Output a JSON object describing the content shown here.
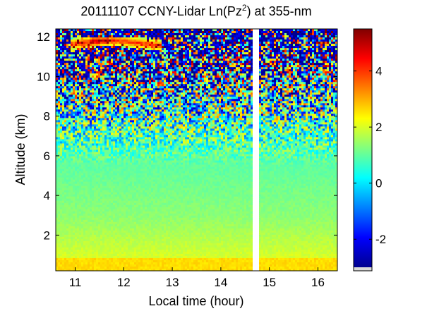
{
  "chart_data": {
    "type": "heatmap",
    "title": {
      "prefix": "20111107 CCNY-Lidar Ln(Pz",
      "superscript": "2",
      "suffix": ") at 355-nm"
    },
    "xlabel": "Local time (hour)",
    "ylabel": "Altitude (km)",
    "xlim": [
      10.6,
      16.4
    ],
    "ylim": [
      0.2,
      12.4
    ],
    "x_ticks": [
      "11",
      "12",
      "13",
      "14",
      "15",
      "16"
    ],
    "y_ticks": [
      "2",
      "4",
      "6",
      "8",
      "10",
      "12"
    ],
    "data_gap_hours": [
      14.65,
      14.78
    ],
    "colormap": "jet",
    "colorbar": {
      "ticks": [
        "-2",
        "0",
        "2",
        "4"
      ],
      "range": [
        -3,
        5.5
      ]
    },
    "colors": {
      "jet": [
        "#00008f",
        "#0000ff",
        "#0080ff",
        "#00ffff",
        "#80ff80",
        "#ffff00",
        "#ff8000",
        "#ff0000",
        "#800000"
      ]
    },
    "features": {
      "cloud_layer": {
        "altitude_km": [
          11.3,
          12.0
        ],
        "time_hours": [
          10.9,
          12.8
        ],
        "value_max": 4.6
      },
      "near_ground_value": 2.6,
      "mid_altitude_value": 0.9,
      "upper_noise_range": [
        -2.5,
        1.5
      ]
    }
  }
}
